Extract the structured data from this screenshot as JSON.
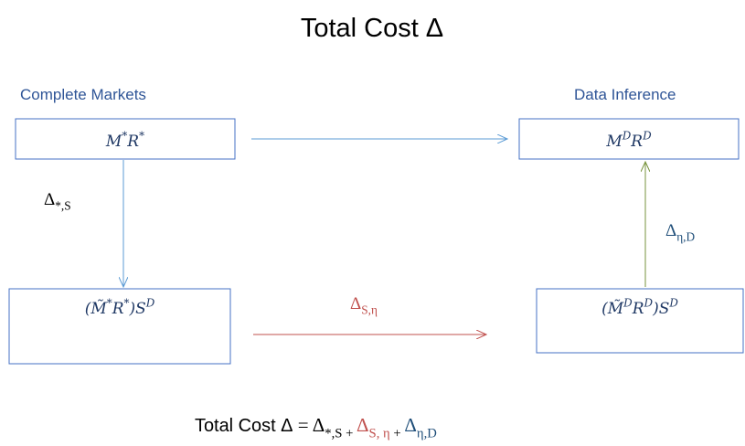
{
  "title": "Total Cost Δ",
  "groups": [
    {
      "label": "Complete Markets"
    },
    {
      "label": "Data Inference"
    }
  ],
  "nodes": [
    {
      "label": [
        {
          "t": "M"
        },
        {
          "t": "*",
          "sup": true
        },
        {
          "t": "R"
        },
        {
          "t": "*",
          "sup": true
        }
      ]
    },
    {
      "label": [
        {
          "t": "M"
        },
        {
          "t": "D",
          "sup": true
        },
        {
          "t": "R"
        },
        {
          "t": "D",
          "sup": true
        }
      ]
    },
    {
      "label": [
        {
          "t": "("
        },
        {
          "t": "M̃"
        },
        {
          "t": "*",
          "sup": true
        },
        {
          "t": "R"
        },
        {
          "t": "*",
          "sup": true
        },
        {
          "t": ")S"
        },
        {
          "t": "D",
          "sup": true
        }
      ]
    },
    {
      "label": [
        {
          "t": "("
        },
        {
          "t": "M̃"
        },
        {
          "t": "D",
          "sup": true
        },
        {
          "t": "R"
        },
        {
          "t": "D",
          "sup": true
        },
        {
          "t": ")S"
        },
        {
          "t": "D",
          "sup": true
        }
      ]
    }
  ],
  "edges": [
    {
      "label": [
        {
          "t": "Δ"
        },
        {
          "t": "*,S",
          "sub": true
        }
      ]
    },
    {
      "label": [
        {
          "t": "Δ",
          "color": "#c0504d"
        },
        {
          "t": "S,η",
          "sub": true,
          "color": "#c0504d"
        }
      ]
    },
    {
      "label": [
        {
          "t": "Δ",
          "color": "#1f4e79"
        },
        {
          "t": "η,D",
          "sub": true,
          "color": "#1f4e79"
        }
      ]
    }
  ],
  "formula": [
    {
      "t": "Total Cost Δ",
      "sans": true
    },
    {
      "t": " = Δ"
    },
    {
      "t": "*,S + ",
      "sub": true
    },
    {
      "t": "Δ",
      "color": "#c0504d"
    },
    {
      "t": "S, η",
      "sub": true,
      "color": "#c0504d"
    },
    {
      "t": " + ",
      "sub": true
    },
    {
      "t": "Δ",
      "color": "#1f4e79"
    },
    {
      "t": "η,D",
      "sub": true,
      "color": "#1f4e79"
    }
  ]
}
